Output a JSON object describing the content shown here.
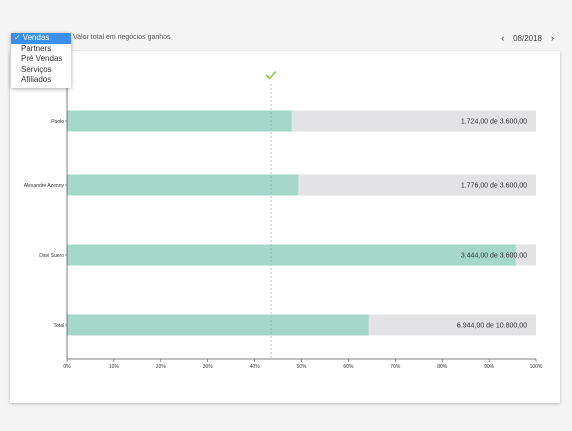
{
  "metric_selector": {
    "options": [
      "Vendas",
      "Partners",
      "Pré Vendas",
      "Serviços",
      "Afiliados"
    ],
    "selected_index": 0,
    "check_glyph": "✓"
  },
  "metric_label": "Valor total em negócios ganhos",
  "period": {
    "label": "08/2018",
    "prev_icon": "chevron-left-icon",
    "next_icon": "chevron-right-icon"
  },
  "target_icon": "checkmark-icon",
  "colors": {
    "bar": "#a5d8c8",
    "track": "#e3e3e5",
    "target": "#8cc63f",
    "accent": "#3b8fe8"
  },
  "chart_data": {
    "type": "bar",
    "orientation": "horizontal",
    "categories": [
      "Paolo",
      "Alexandre Azenny",
      "Davi Suero",
      "Total"
    ],
    "values": [
      1724,
      1776,
      3444,
      6944
    ],
    "targets": [
      3600,
      3600,
      3600,
      10800
    ],
    "value_labels": [
      "1.724,00 de 3.600,00",
      "1.776,00 de 3.600,00",
      "3.444,00 de 3.600,00",
      "6.944,00 de 10.800,00"
    ],
    "xlim": [
      0,
      100
    ],
    "x_unit": "%",
    "x_ticks": [
      "0%",
      "10%",
      "20%",
      "30%",
      "40%",
      "50%",
      "60%",
      "70%",
      "80%",
      "90%",
      "100%"
    ],
    "target_line_percent": 43.5,
    "grid": false
  }
}
